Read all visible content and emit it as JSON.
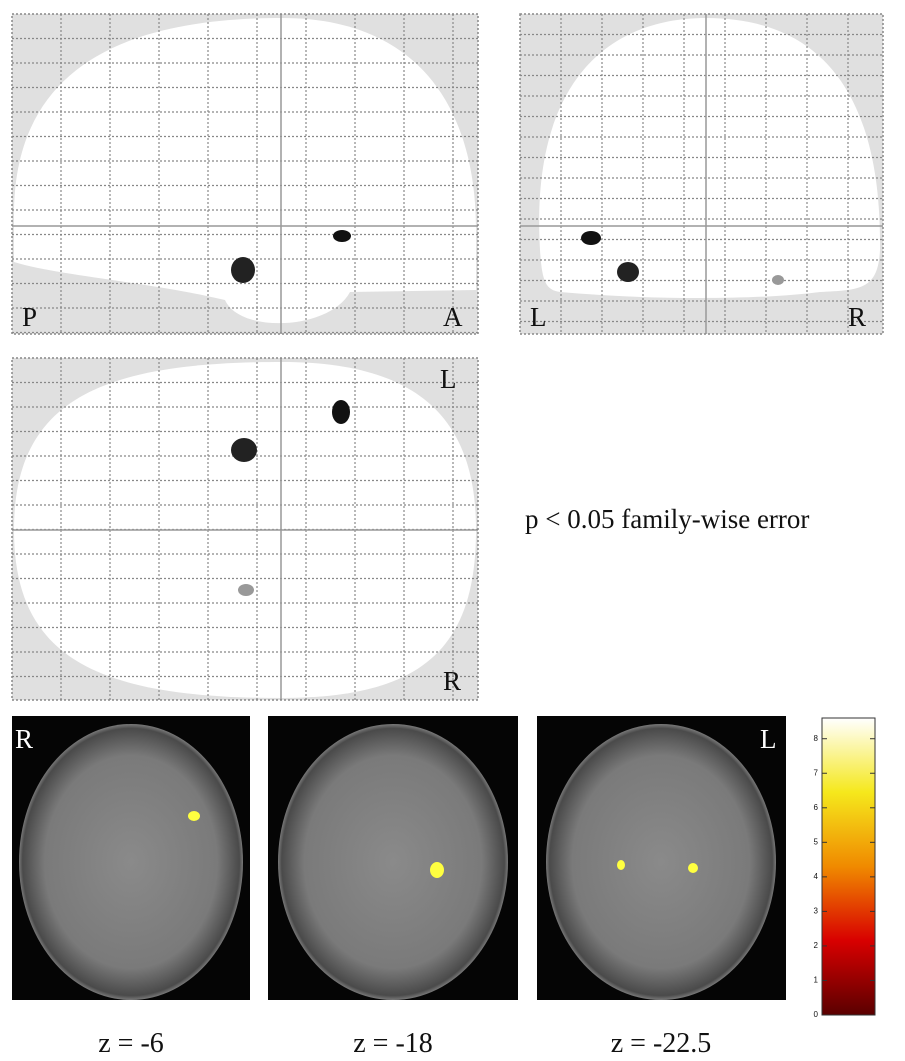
{
  "glass_brain": {
    "sagittal": {
      "left_label": "P",
      "right_label": "A"
    },
    "coronal": {
      "left_label": "L",
      "right_label": "R"
    },
    "axial": {
      "top_label": "L",
      "bottom_label": "R"
    },
    "threshold_note": "p < 0.05 family-wise error"
  },
  "slices": {
    "left_label": "R",
    "right_label": "L",
    "captions": [
      "z = -6",
      "z = -18",
      "z = -22.5"
    ]
  },
  "colorbar": {
    "lim": [
      0,
      8.6
    ],
    "ticks": [
      0,
      1,
      2,
      3,
      4,
      5,
      6,
      7,
      8
    ]
  }
}
